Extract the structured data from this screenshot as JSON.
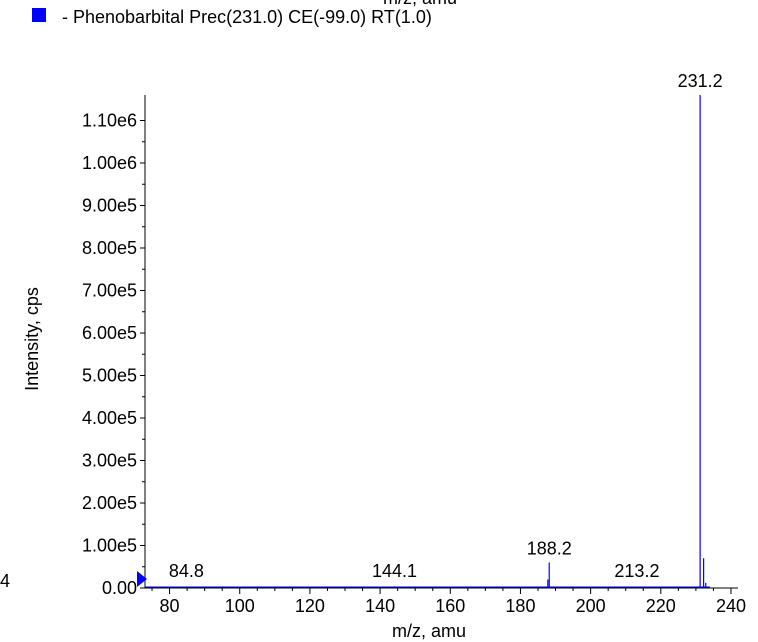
{
  "chart_data": {
    "type": "bar",
    "top_cutoff_label": "m/z, amu",
    "legend": {
      "label": "- Phenobarbital Prec(231.0) CE(-99.0) RT(1.0)",
      "color": "#0000ff",
      "placement": "top-left"
    },
    "xlabel": "m/z, amu",
    "ylabel": "Intensity, cps",
    "xlim": [
      73,
      242
    ],
    "ylim": [
      0,
      1160000
    ],
    "x_ticks": [
      "80",
      "100",
      "120",
      "140",
      "160",
      "180",
      "200",
      "220",
      "240"
    ],
    "y_ticks": [
      "0.00",
      "1.00e5",
      "2.00e5",
      "3.00e5",
      "4.00e5",
      "5.00e5",
      "6.00e5",
      "7.00e5",
      "8.00e5",
      "9.00e5",
      "1.00e6",
      "1.10e6"
    ],
    "left_cut_label": "4",
    "line_color": "#0000ff",
    "peaks": [
      {
        "x": 84.8,
        "y": 3000
      },
      {
        "x": 144.1,
        "y": 4000
      },
      {
        "x": 145.5,
        "y": 3000
      },
      {
        "x": 187.8,
        "y": 20000
      },
      {
        "x": 188.2,
        "y": 60000
      },
      {
        "x": 213.2,
        "y": 3000
      },
      {
        "x": 231.2,
        "y": 1160000
      },
      {
        "x": 232.2,
        "y": 70000
      },
      {
        "x": 232.8,
        "y": 12000
      }
    ],
    "peak_labels": [
      "84.8",
      "144.1",
      "188.2",
      "213.2",
      "231.2"
    ]
  }
}
